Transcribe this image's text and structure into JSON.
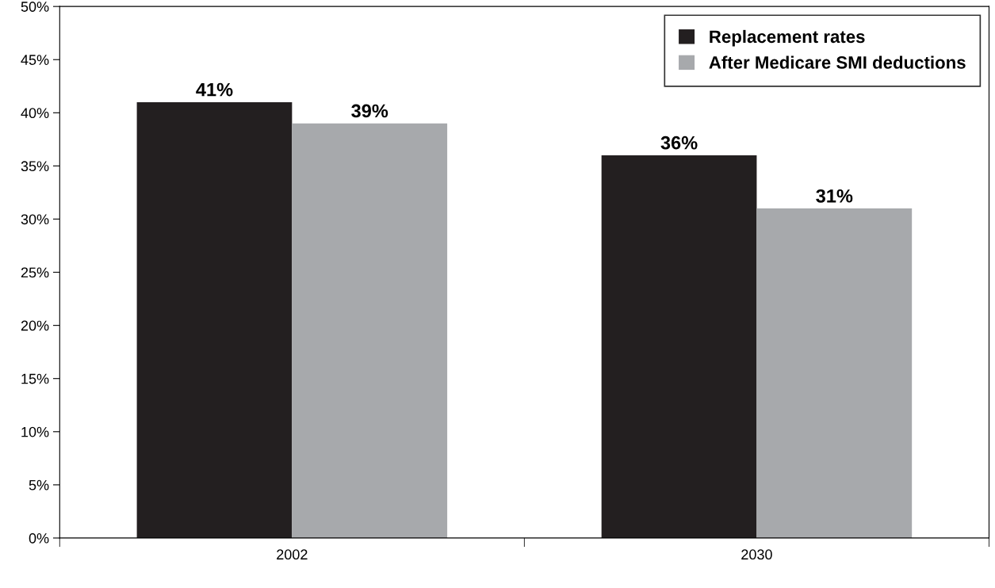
{
  "chart_data": {
    "type": "bar",
    "categories": [
      "2002",
      "2030"
    ],
    "series": [
      {
        "name": "Replacement rates",
        "color": "#231f20",
        "values": [
          41,
          36
        ],
        "value_labels": [
          "41%",
          "36%"
        ]
      },
      {
        "name": "After Medicare SMI deductions",
        "color": "#a7a9ac",
        "values": [
          39,
          31
        ],
        "value_labels": [
          "39%",
          "31%"
        ]
      }
    ],
    "ylim": [
      0,
      50
    ],
    "yticks": [
      {
        "value": 0,
        "label": "0%"
      },
      {
        "value": 5,
        "label": "5%"
      },
      {
        "value": 10,
        "label": "10%"
      },
      {
        "value": 15,
        "label": "15%"
      },
      {
        "value": 20,
        "label": "20%"
      },
      {
        "value": 25,
        "label": "25%"
      },
      {
        "value": 30,
        "label": "30%"
      },
      {
        "value": 35,
        "label": "35%"
      },
      {
        "value": 40,
        "label": "40%"
      },
      {
        "value": 45,
        "label": "45%"
      },
      {
        "value": 50,
        "label": "50%"
      }
    ],
    "grid": false,
    "legend": "top right"
  }
}
